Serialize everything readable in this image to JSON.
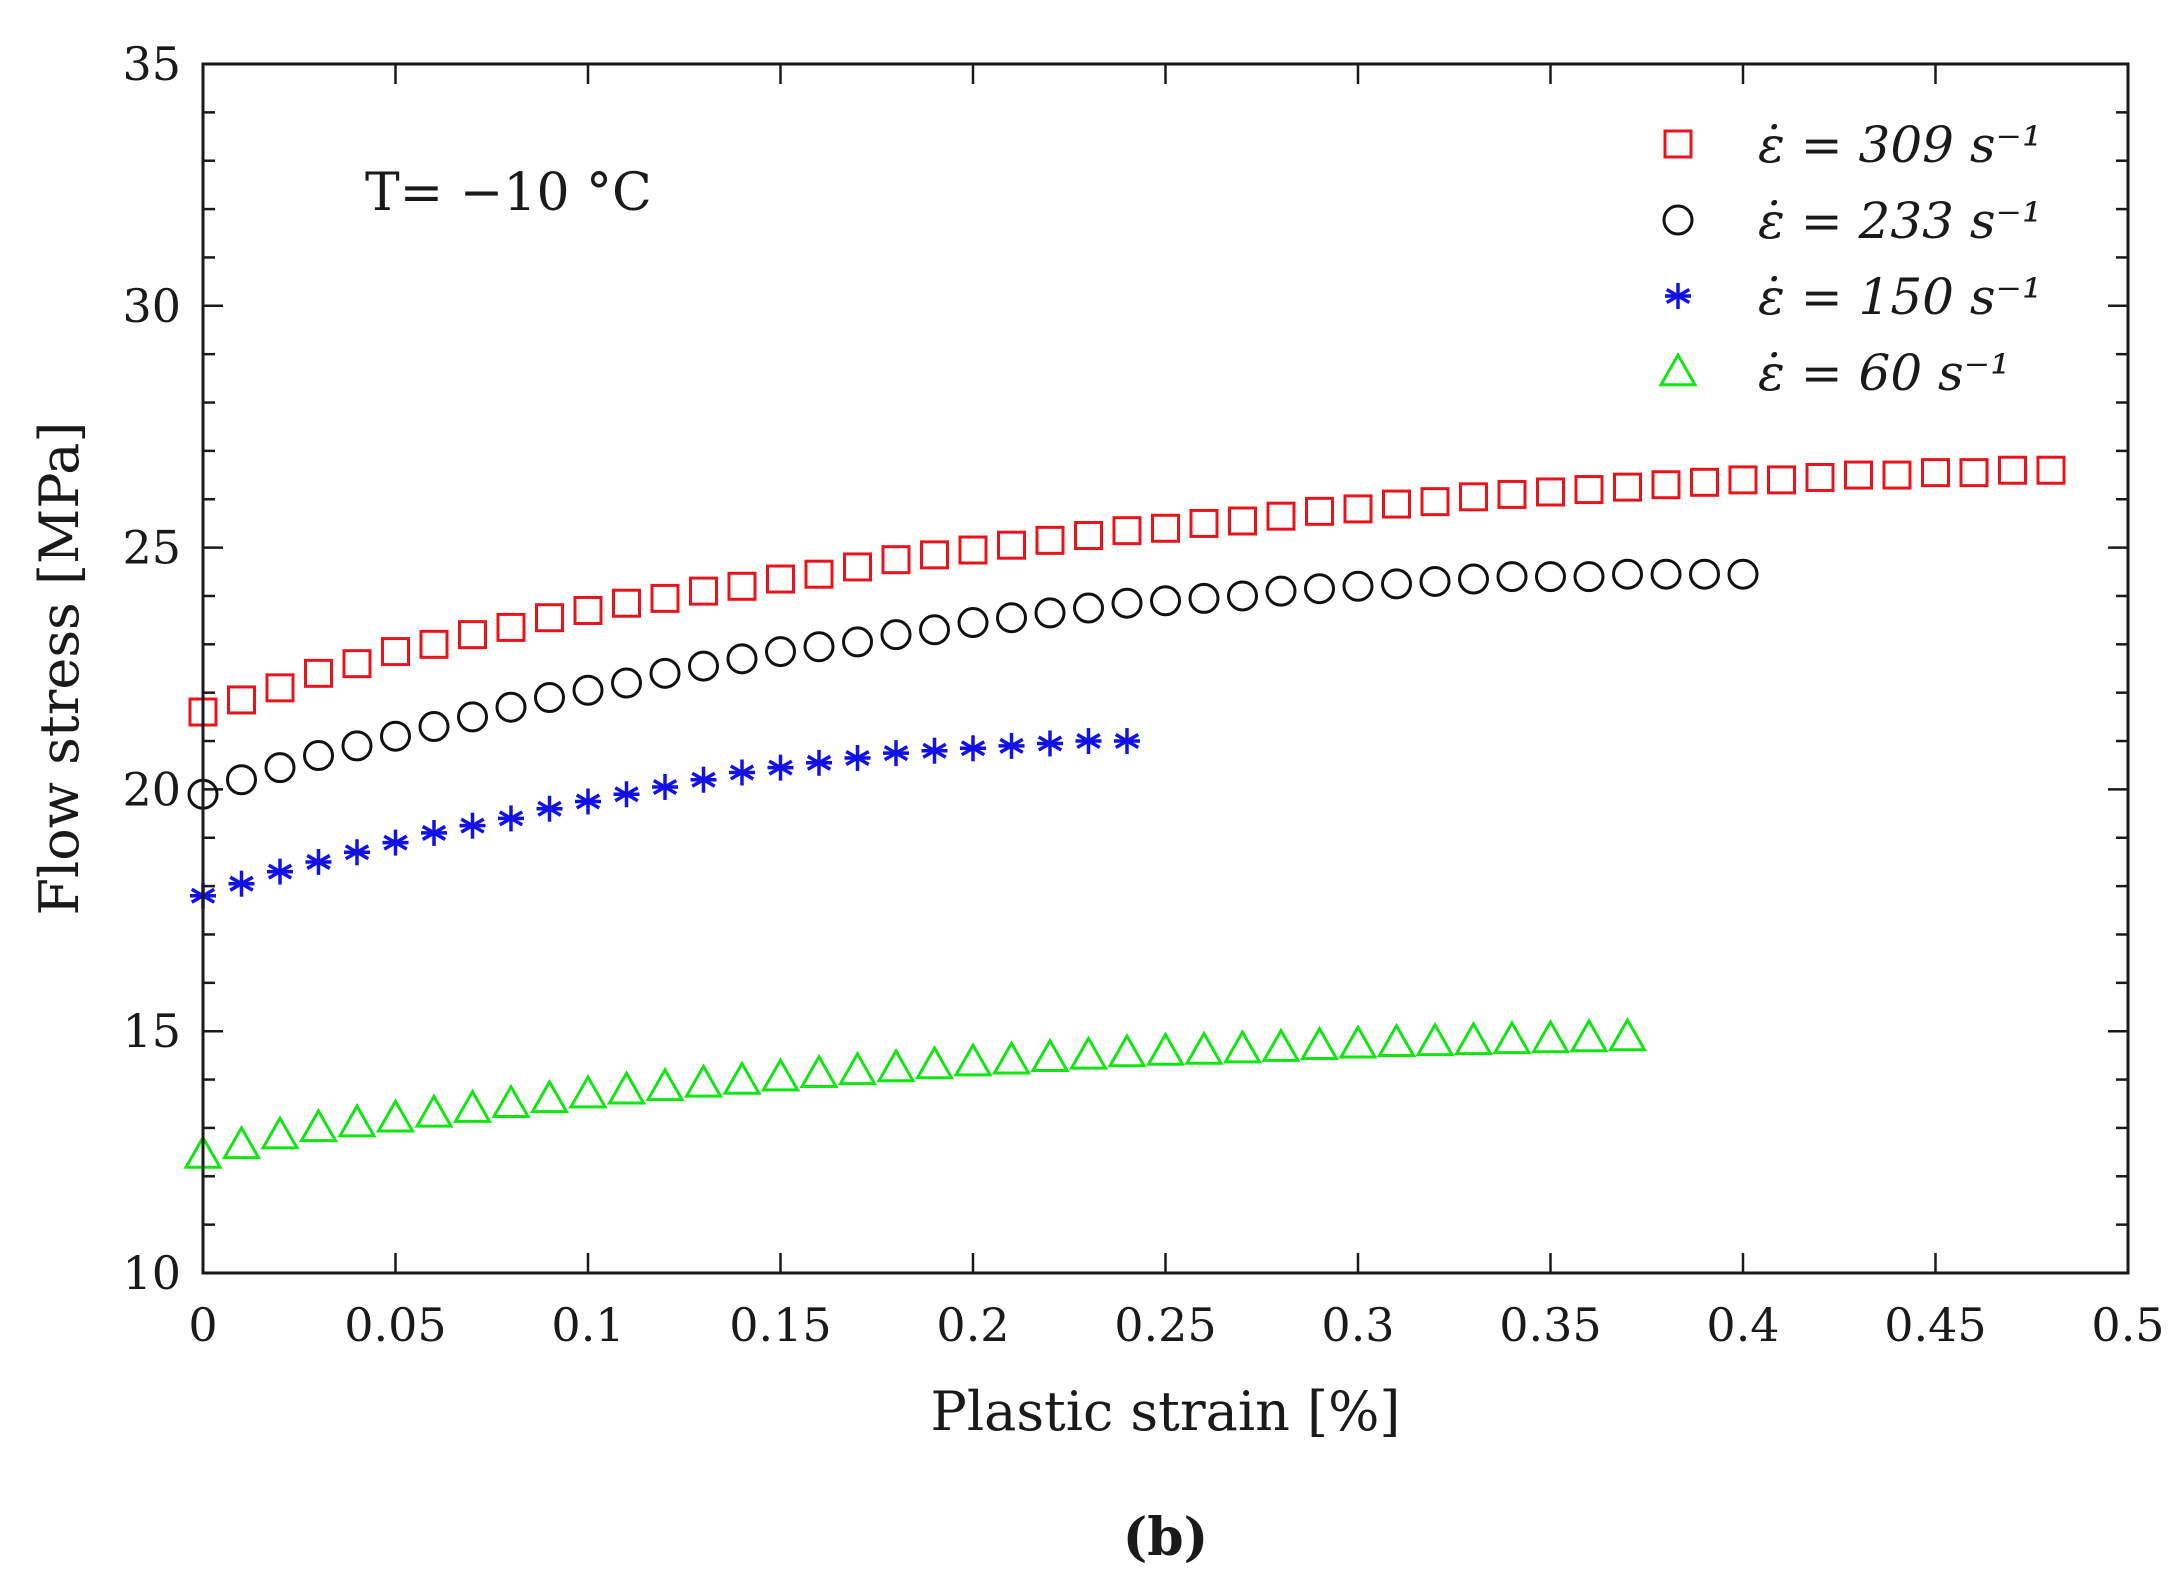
{
  "chart_data": {
    "type": "scatter",
    "xlabel": "Plastic strain [%]",
    "ylabel": "Flow stress [MPa]",
    "xlim": [
      0,
      0.5
    ],
    "ylim": [
      10,
      35
    ],
    "xticks": [
      0,
      0.05,
      0.1,
      0.15,
      0.2,
      0.25,
      0.3,
      0.35,
      0.4,
      0.45,
      0.5
    ],
    "xtick_labels": [
      "0",
      "0.05",
      "0.1",
      "0.15",
      "0.2",
      "0.25",
      "0.3",
      "0.35",
      "0.4",
      "0.45",
      "0.5"
    ],
    "yticks": [
      10,
      15,
      20,
      25,
      30,
      35
    ],
    "ytick_labels": [
      "10",
      "15",
      "20",
      "25",
      "30",
      "35"
    ],
    "annotation": "T= −10 °C",
    "caption": "(b)",
    "legend_position": "top-right",
    "series": [
      {
        "name": "ε̇ = 309 s⁻¹",
        "marker": "square",
        "color": "#e8141b",
        "x": [
          0.0,
          0.01,
          0.02,
          0.03,
          0.04,
          0.05,
          0.06,
          0.07,
          0.08,
          0.09,
          0.1,
          0.11,
          0.12,
          0.13,
          0.14,
          0.15,
          0.16,
          0.17,
          0.18,
          0.19,
          0.2,
          0.21,
          0.22,
          0.23,
          0.24,
          0.25,
          0.26,
          0.27,
          0.28,
          0.29,
          0.3,
          0.31,
          0.32,
          0.33,
          0.34,
          0.35,
          0.36,
          0.37,
          0.38,
          0.39,
          0.4,
          0.41,
          0.42,
          0.43,
          0.44,
          0.45,
          0.46,
          0.47,
          0.48
        ],
        "y": [
          21.6,
          21.85,
          22.1,
          22.4,
          22.6,
          22.85,
          23.0,
          23.2,
          23.35,
          23.55,
          23.7,
          23.85,
          23.95,
          24.1,
          24.2,
          24.35,
          24.45,
          24.6,
          24.75,
          24.85,
          24.95,
          25.05,
          25.15,
          25.25,
          25.35,
          25.4,
          25.5,
          25.55,
          25.65,
          25.75,
          25.8,
          25.9,
          25.95,
          26.05,
          26.1,
          26.15,
          26.2,
          26.25,
          26.3,
          26.35,
          26.4,
          26.4,
          26.45,
          26.5,
          26.5,
          26.55,
          26.55,
          26.6,
          26.6
        ]
      },
      {
        "name": "ε̇ = 233 s⁻¹",
        "marker": "circle",
        "color": "#111111",
        "x": [
          0.0,
          0.01,
          0.02,
          0.03,
          0.04,
          0.05,
          0.06,
          0.07,
          0.08,
          0.09,
          0.1,
          0.11,
          0.12,
          0.13,
          0.14,
          0.15,
          0.16,
          0.17,
          0.18,
          0.19,
          0.2,
          0.21,
          0.22,
          0.23,
          0.24,
          0.25,
          0.26,
          0.27,
          0.28,
          0.29,
          0.3,
          0.31,
          0.32,
          0.33,
          0.34,
          0.35,
          0.36,
          0.37,
          0.38,
          0.39,
          0.4
        ],
        "y": [
          19.9,
          20.2,
          20.45,
          20.7,
          20.9,
          21.1,
          21.3,
          21.5,
          21.7,
          21.9,
          22.05,
          22.2,
          22.4,
          22.55,
          22.7,
          22.85,
          22.95,
          23.05,
          23.2,
          23.3,
          23.45,
          23.55,
          23.65,
          23.75,
          23.85,
          23.9,
          23.95,
          24.0,
          24.1,
          24.15,
          24.2,
          24.25,
          24.3,
          24.35,
          24.4,
          24.4,
          24.4,
          24.45,
          24.45,
          24.45,
          24.45
        ]
      },
      {
        "name": "ε̇ = 150 s⁻¹",
        "marker": "asterisk",
        "color": "#1212e6",
        "x": [
          0.0,
          0.01,
          0.02,
          0.03,
          0.04,
          0.05,
          0.06,
          0.07,
          0.08,
          0.09,
          0.1,
          0.11,
          0.12,
          0.13,
          0.14,
          0.15,
          0.16,
          0.17,
          0.18,
          0.19,
          0.2,
          0.21,
          0.22,
          0.23,
          0.24
        ],
        "y": [
          17.8,
          18.05,
          18.3,
          18.5,
          18.7,
          18.9,
          19.1,
          19.25,
          19.4,
          19.6,
          19.75,
          19.9,
          20.05,
          20.2,
          20.35,
          20.45,
          20.55,
          20.65,
          20.75,
          20.8,
          20.85,
          20.9,
          20.95,
          21.0,
          21.0
        ]
      },
      {
        "name": "ε̇ = 60 s⁻¹",
        "marker": "triangle",
        "color": "#12e612",
        "x": [
          0.0,
          0.01,
          0.02,
          0.03,
          0.04,
          0.05,
          0.06,
          0.07,
          0.08,
          0.09,
          0.1,
          0.11,
          0.12,
          0.13,
          0.14,
          0.15,
          0.16,
          0.17,
          0.18,
          0.19,
          0.2,
          0.21,
          0.22,
          0.23,
          0.24,
          0.25,
          0.26,
          0.27,
          0.28,
          0.29,
          0.3,
          0.31,
          0.32,
          0.33,
          0.34,
          0.35,
          0.36,
          0.37
        ],
        "y": [
          12.45,
          12.65,
          12.85,
          13.0,
          13.1,
          13.2,
          13.3,
          13.4,
          13.5,
          13.6,
          13.7,
          13.78,
          13.85,
          13.92,
          13.98,
          14.05,
          14.12,
          14.18,
          14.24,
          14.3,
          14.36,
          14.4,
          14.45,
          14.5,
          14.55,
          14.58,
          14.6,
          14.63,
          14.66,
          14.7,
          14.73,
          14.76,
          14.78,
          14.8,
          14.82,
          14.84,
          14.86,
          14.88
        ]
      }
    ]
  }
}
